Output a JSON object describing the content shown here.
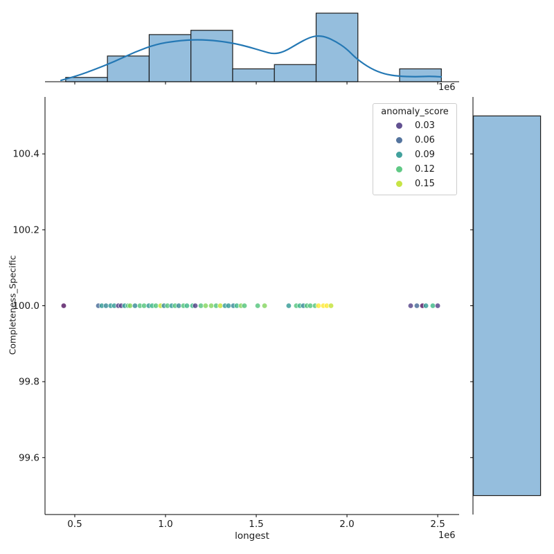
{
  "labels": {
    "xlabel": "longest",
    "ylabel": "Completeness_Specific",
    "unit_offset": "1e6"
  },
  "legend": {
    "title": "anomaly_score",
    "entries": [
      {
        "label": "0.03",
        "score": 0.03
      },
      {
        "label": "0.06",
        "score": 0.06
      },
      {
        "label": "0.09",
        "score": 0.09
      },
      {
        "label": "0.12",
        "score": 0.12
      },
      {
        "label": "0.15",
        "score": 0.15
      }
    ]
  },
  "style": {
    "hist_fill": "#95bedd",
    "hist_edge": "#1b1b1b",
    "kde_color": "#2478b4",
    "spine_color": "#000000",
    "tick_text_color": "#1a1a1a",
    "point_opacity": 0.75
  },
  "chart_data": {
    "type": "scatter",
    "title": "",
    "xlabel": "longest",
    "ylabel": "Completeness_Specific",
    "x_unit_multiplier": "1e6",
    "xlim": [
      0.336,
      2.618
    ],
    "ylim": [
      99.45,
      100.55
    ],
    "x_ticks": [
      0.5,
      1.0,
      1.5,
      2.0,
      2.5
    ],
    "y_ticks": [
      100.4,
      100.2,
      100.0,
      99.8,
      99.6
    ],
    "grid": false,
    "legend_position": "upper right inside main axes",
    "palette_stops": [
      [
        0.02,
        "#440154"
      ],
      [
        0.035,
        "#46327e"
      ],
      [
        0.055,
        "#365c8d"
      ],
      [
        0.075,
        "#277f8e"
      ],
      [
        0.09,
        "#21918c"
      ],
      [
        0.11,
        "#2db27d"
      ],
      [
        0.125,
        "#44bf70"
      ],
      [
        0.14,
        "#7ad151"
      ],
      [
        0.15,
        "#bddf26"
      ],
      [
        0.16,
        "#fde725"
      ]
    ],
    "scatter": {
      "y_constant": 100.0,
      "points": [
        [
          0.439,
          0.02
        ],
        [
          0.63,
          0.06
        ],
        [
          0.649,
          0.09
        ],
        [
          0.672,
          0.075
        ],
        [
          0.698,
          0.09
        ],
        [
          0.718,
          0.09
        ],
        [
          0.74,
          0.035
        ],
        [
          0.756,
          0.035
        ],
        [
          0.775,
          0.09
        ],
        [
          0.794,
          0.125
        ],
        [
          0.805,
          0.14
        ],
        [
          0.832,
          0.075
        ],
        [
          0.859,
          0.125
        ],
        [
          0.882,
          0.125
        ],
        [
          0.908,
          0.09
        ],
        [
          0.927,
          0.11
        ],
        [
          0.947,
          0.125
        ],
        [
          0.973,
          0.15
        ],
        [
          0.992,
          0.075
        ],
        [
          1.011,
          0.125
        ],
        [
          1.034,
          0.09
        ],
        [
          1.053,
          0.125
        ],
        [
          1.073,
          0.075
        ],
        [
          1.099,
          0.125
        ],
        [
          1.118,
          0.11
        ],
        [
          1.149,
          0.11
        ],
        [
          1.164,
          0.035
        ],
        [
          1.195,
          0.125
        ],
        [
          1.221,
          0.14
        ],
        [
          1.252,
          0.14
        ],
        [
          1.279,
          0.125
        ],
        [
          1.302,
          0.15
        ],
        [
          1.328,
          0.09
        ],
        [
          1.347,
          0.09
        ],
        [
          1.374,
          0.075
        ],
        [
          1.393,
          0.11
        ],
        [
          1.416,
          0.14
        ],
        [
          1.435,
          0.125
        ],
        [
          1.508,
          0.125
        ],
        [
          1.546,
          0.14
        ],
        [
          1.679,
          0.09
        ],
        [
          1.721,
          0.125
        ],
        [
          1.74,
          0.11
        ],
        [
          1.76,
          0.075
        ],
        [
          1.779,
          0.125
        ],
        [
          1.798,
          0.125
        ],
        [
          1.824,
          0.125
        ],
        [
          1.843,
          0.16
        ],
        [
          1.87,
          0.16
        ],
        [
          1.889,
          0.16
        ],
        [
          1.912,
          0.15
        ],
        [
          2.351,
          0.035
        ],
        [
          2.385,
          0.055
        ],
        [
          2.416,
          0.02
        ],
        [
          2.435,
          0.09
        ],
        [
          2.473,
          0.11
        ],
        [
          2.5,
          0.035
        ]
      ]
    },
    "top_histogram": {
      "bin_start": 0.45,
      "bin_width": 0.23,
      "counts": [
        1,
        6,
        11,
        12,
        3,
        4,
        16,
        0,
        3
      ]
    },
    "top_kde": {
      "x": [
        0.424,
        0.508,
        0.603,
        0.718,
        0.832,
        0.947,
        1.061,
        1.176,
        1.29,
        1.385,
        1.462,
        1.538,
        1.595,
        1.653,
        1.729,
        1.786,
        1.832,
        1.882,
        1.939,
        1.996,
        2.053,
        2.13,
        2.206,
        2.282,
        2.378,
        2.454,
        2.519
      ],
      "y": [
        0.32,
        1.29,
        2.75,
        4.69,
        6.95,
        8.73,
        9.54,
        9.86,
        9.54,
        8.89,
        8.08,
        7.11,
        6.46,
        6.95,
        8.89,
        10.18,
        10.75,
        10.51,
        9.37,
        7.76,
        5.33,
        3.07,
        1.78,
        1.29,
        1.13,
        1.29,
        1.13
      ]
    },
    "right_histogram": {
      "bin_start": 99.5,
      "bin_end": 100.5,
      "count": 56
    }
  }
}
